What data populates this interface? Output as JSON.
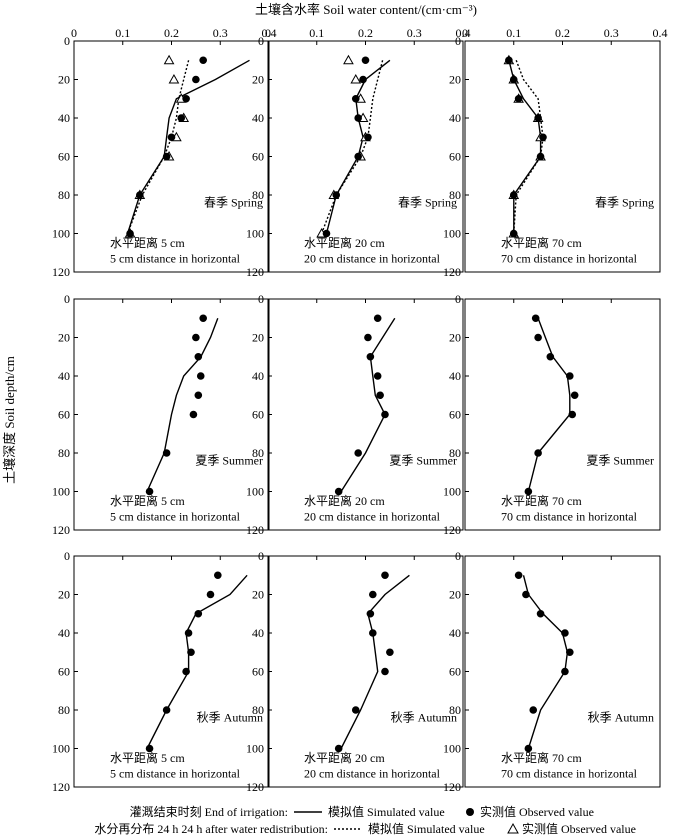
{
  "chart_data": {
    "type": "line",
    "title": "土壤含水率 Soil water content/(cm·cm⁻³)",
    "ylabel": "土壤深度 Soil depth/cm",
    "xlim": [
      0,
      0.4
    ],
    "ylim": [
      0,
      120
    ],
    "x_ticks": [
      "0",
      "0.1",
      "0.2",
      "0.3",
      "0.4"
    ],
    "y_ticks": [
      "0",
      "20",
      "40",
      "60",
      "80",
      "100",
      "120"
    ],
    "legend": {
      "row1_label": "灌溉结束时刻 End of irrigation:",
      "row2_label": "水分再分布 24 h  24 h after water redistribution:",
      "simulated": "模拟值 Simulated value",
      "observed": "实测值 Observed value"
    },
    "panels": [
      {
        "season": "春季 Spring",
        "dist1": "水平距离 5 cm",
        "dist2": "5 cm distance in horizontal",
        "sim_end": [
          [
            0.36,
            10
          ],
          [
            0.29,
            20
          ],
          [
            0.21,
            30
          ],
          [
            0.195,
            40
          ],
          [
            0.19,
            50
          ],
          [
            0.185,
            60
          ],
          [
            0.135,
            80
          ],
          [
            0.11,
            100
          ]
        ],
        "obs_end": [
          [
            0.265,
            10
          ],
          [
            0.25,
            20
          ],
          [
            0.23,
            30
          ],
          [
            0.22,
            40
          ],
          [
            0.2,
            50
          ],
          [
            0.19,
            60
          ],
          [
            0.135,
            80
          ],
          [
            0.115,
            100
          ]
        ],
        "sim_24h": [
          [
            0.235,
            10
          ],
          [
            0.225,
            20
          ],
          [
            0.215,
            30
          ],
          [
            0.21,
            40
          ],
          [
            0.2,
            50
          ],
          [
            0.185,
            60
          ],
          [
            0.14,
            80
          ],
          [
            0.11,
            100
          ]
        ],
        "obs_24h": [
          [
            0.195,
            10
          ],
          [
            0.205,
            20
          ],
          [
            0.22,
            30
          ],
          [
            0.225,
            40
          ],
          [
            0.21,
            50
          ],
          [
            0.195,
            60
          ],
          [
            0.135,
            80
          ],
          [
            0.115,
            100
          ]
        ]
      },
      {
        "season": "春季 Spring",
        "dist1": "水平距离 20 cm",
        "dist2": "20 cm distance in horizontal",
        "sim_end": [
          [
            0.25,
            10
          ],
          [
            0.2,
            20
          ],
          [
            0.18,
            30
          ],
          [
            0.185,
            40
          ],
          [
            0.195,
            50
          ],
          [
            0.185,
            60
          ],
          [
            0.14,
            80
          ],
          [
            0.12,
            100
          ]
        ],
        "obs_end": [
          [
            0.2,
            10
          ],
          [
            0.195,
            20
          ],
          [
            0.18,
            30
          ],
          [
            0.185,
            40
          ],
          [
            0.205,
            50
          ],
          [
            0.185,
            60
          ],
          [
            0.14,
            80
          ],
          [
            0.12,
            100
          ]
        ],
        "sim_24h": [
          [
            0.235,
            10
          ],
          [
            0.225,
            20
          ],
          [
            0.215,
            30
          ],
          [
            0.21,
            40
          ],
          [
            0.205,
            50
          ],
          [
            0.19,
            60
          ],
          [
            0.14,
            80
          ],
          [
            0.11,
            100
          ]
        ],
        "obs_24h": [
          [
            0.165,
            10
          ],
          [
            0.18,
            20
          ],
          [
            0.19,
            30
          ],
          [
            0.195,
            40
          ],
          [
            0.2,
            50
          ],
          [
            0.19,
            60
          ],
          [
            0.135,
            80
          ],
          [
            0.11,
            100
          ]
        ]
      },
      {
        "season": "春季 Spring",
        "dist1": "水平距离 70 cm",
        "dist2": "70 cm distance in horizontal",
        "sim_end": [
          [
            0.09,
            10
          ],
          [
            0.1,
            20
          ],
          [
            0.12,
            30
          ],
          [
            0.15,
            40
          ],
          [
            0.155,
            50
          ],
          [
            0.155,
            60
          ],
          [
            0.1,
            80
          ],
          [
            0.1,
            100
          ]
        ],
        "obs_end": [
          [
            0.09,
            10
          ],
          [
            0.1,
            20
          ],
          [
            0.11,
            30
          ],
          [
            0.15,
            40
          ],
          [
            0.16,
            50
          ],
          [
            0.155,
            60
          ],
          [
            0.1,
            80
          ],
          [
            0.1,
            100
          ]
        ],
        "sim_24h": [
          [
            0.105,
            10
          ],
          [
            0.12,
            20
          ],
          [
            0.15,
            30
          ],
          [
            0.155,
            40
          ],
          [
            0.16,
            50
          ],
          [
            0.155,
            60
          ],
          [
            0.105,
            80
          ],
          [
            0.1,
            100
          ]
        ],
        "obs_24h": [
          [
            0.09,
            10
          ],
          [
            0.1,
            20
          ],
          [
            0.11,
            30
          ],
          [
            0.15,
            40
          ],
          [
            0.155,
            50
          ],
          [
            0.155,
            60
          ],
          [
            0.1,
            80
          ],
          [
            0.1,
            100
          ]
        ]
      },
      {
        "season": "夏季 Summer",
        "dist1": "水平距离 5 cm",
        "dist2": "5 cm distance in horizontal",
        "sim_end": [
          [
            0.295,
            10
          ],
          [
            0.28,
            20
          ],
          [
            0.26,
            30
          ],
          [
            0.225,
            40
          ],
          [
            0.21,
            50
          ],
          [
            0.2,
            60
          ],
          [
            0.185,
            80
          ],
          [
            0.15,
            100
          ]
        ],
        "obs_end": [
          [
            0.265,
            10
          ],
          [
            0.25,
            20
          ],
          [
            0.255,
            30
          ],
          [
            0.26,
            40
          ],
          [
            0.255,
            50
          ],
          [
            0.245,
            60
          ],
          [
            0.19,
            80
          ],
          [
            0.155,
            100
          ]
        ]
      },
      {
        "season": "夏季 Summer",
        "dist1": "水平距离 20 cm",
        "dist2": "20 cm distance in horizontal",
        "sim_end": [
          [
            0.26,
            10
          ],
          [
            0.235,
            20
          ],
          [
            0.21,
            30
          ],
          [
            0.215,
            40
          ],
          [
            0.22,
            50
          ],
          [
            0.24,
            60
          ],
          [
            0.2,
            80
          ],
          [
            0.15,
            100
          ]
        ],
        "obs_end": [
          [
            0.225,
            10
          ],
          [
            0.205,
            20
          ],
          [
            0.21,
            30
          ],
          [
            0.225,
            40
          ],
          [
            0.23,
            50
          ],
          [
            0.24,
            60
          ],
          [
            0.185,
            80
          ],
          [
            0.145,
            100
          ]
        ]
      },
      {
        "season": "夏季 Summer",
        "dist1": "水平距离 70 cm",
        "dist2": "70 cm distance in horizontal",
        "sim_end": [
          [
            0.15,
            10
          ],
          [
            0.165,
            20
          ],
          [
            0.18,
            30
          ],
          [
            0.21,
            40
          ],
          [
            0.215,
            50
          ],
          [
            0.215,
            60
          ],
          [
            0.15,
            80
          ],
          [
            0.13,
            100
          ]
        ],
        "obs_end": [
          [
            0.145,
            10
          ],
          [
            0.15,
            20
          ],
          [
            0.175,
            30
          ],
          [
            0.215,
            40
          ],
          [
            0.225,
            50
          ],
          [
            0.22,
            60
          ],
          [
            0.15,
            80
          ],
          [
            0.13,
            100
          ]
        ]
      },
      {
        "season": "秋季 Autumn",
        "dist1": "水平距离 5 cm",
        "dist2": "5 cm distance in horizontal",
        "sim_end": [
          [
            0.355,
            10
          ],
          [
            0.32,
            20
          ],
          [
            0.25,
            30
          ],
          [
            0.23,
            40
          ],
          [
            0.235,
            50
          ],
          [
            0.235,
            60
          ],
          [
            0.19,
            80
          ],
          [
            0.15,
            100
          ]
        ],
        "obs_end": [
          [
            0.295,
            10
          ],
          [
            0.28,
            20
          ],
          [
            0.255,
            30
          ],
          [
            0.235,
            40
          ],
          [
            0.24,
            50
          ],
          [
            0.23,
            60
          ],
          [
            0.19,
            80
          ],
          [
            0.155,
            100
          ]
        ]
      },
      {
        "season": "秋季 Autumn",
        "dist1": "水平距离 20 cm",
        "dist2": "20 cm distance in horizontal",
        "sim_end": [
          [
            0.29,
            10
          ],
          [
            0.24,
            20
          ],
          [
            0.205,
            30
          ],
          [
            0.215,
            40
          ],
          [
            0.22,
            50
          ],
          [
            0.225,
            60
          ],
          [
            0.19,
            80
          ],
          [
            0.15,
            100
          ]
        ],
        "obs_end": [
          [
            0.24,
            10
          ],
          [
            0.215,
            20
          ],
          [
            0.21,
            30
          ],
          [
            0.215,
            40
          ],
          [
            0.25,
            50
          ],
          [
            0.24,
            60
          ],
          [
            0.18,
            80
          ],
          [
            0.145,
            100
          ]
        ]
      },
      {
        "season": "秋季 Autumn",
        "dist1": "水平距离 70 cm",
        "dist2": "70 cm distance in horizontal",
        "sim_end": [
          [
            0.12,
            10
          ],
          [
            0.13,
            20
          ],
          [
            0.16,
            30
          ],
          [
            0.2,
            40
          ],
          [
            0.21,
            50
          ],
          [
            0.205,
            60
          ],
          [
            0.155,
            80
          ],
          [
            0.13,
            100
          ]
        ],
        "obs_end": [
          [
            0.11,
            10
          ],
          [
            0.125,
            20
          ],
          [
            0.155,
            30
          ],
          [
            0.205,
            40
          ],
          [
            0.215,
            50
          ],
          [
            0.205,
            60
          ],
          [
            0.14,
            80
          ],
          [
            0.13,
            100
          ]
        ]
      }
    ]
  }
}
